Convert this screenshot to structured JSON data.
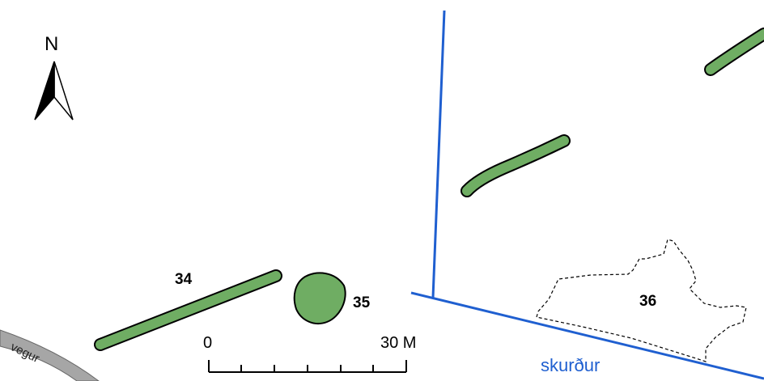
{
  "colors": {
    "feature_fill": "#6fad63",
    "feature_stroke": "#000000",
    "ditch": "#1f5fd0",
    "road_fill": "#a6a6a6",
    "boundary": "#000000"
  },
  "north_arrow": {
    "label": "N",
    "icon": "north-arrow-icon"
  },
  "features": [
    {
      "id": "34",
      "label": "34",
      "shape": "linear"
    },
    {
      "id": "35",
      "label": "35",
      "shape": "round"
    },
    {
      "id": "36",
      "label": "36",
      "shape": "dashed-outline"
    },
    {
      "id": "unlabeled-middle",
      "label": "",
      "shape": "linear"
    },
    {
      "id": "unlabeled-top-right",
      "label": "",
      "shape": "linear"
    }
  ],
  "scale_bar": {
    "start_label": "0",
    "end_label": "30 M"
  },
  "labels": {
    "ditch": "skurður",
    "road": "vegur"
  }
}
